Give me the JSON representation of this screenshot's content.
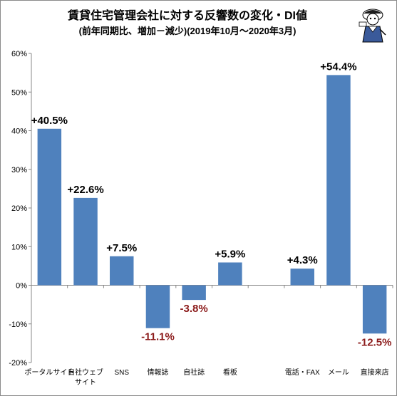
{
  "chart_data": {
    "type": "bar",
    "title": "賃貸住宅管理会社に対する反響数の変化・DI値",
    "subtitle": "(前年同期比、増加－減少)(2019年10月～2020年3月)",
    "xlabel": "",
    "ylabel": "",
    "ylim": [
      -20,
      60
    ],
    "yticks": [
      "-20%",
      "-10%",
      "0%",
      "10%",
      "20%",
      "30%",
      "40%",
      "50%",
      "60%"
    ],
    "grid": false,
    "categories": [
      [
        "ポータルサイト"
      ],
      [
        "自社ウェブ",
        "サイト"
      ],
      [
        "SNS"
      ],
      [
        "情報誌"
      ],
      [
        "自社誌"
      ],
      [
        "看板"
      ],
      [
        ""
      ],
      [
        "電話・FAX"
      ],
      [
        "メール"
      ],
      [
        "直接来店"
      ]
    ],
    "values": [
      40.5,
      22.6,
      7.5,
      -11.1,
      -3.8,
      5.9,
      null,
      4.3,
      54.4,
      -12.5
    ],
    "labels": [
      "+40.5%",
      "+22.6%",
      "+7.5%",
      "-11.1%",
      "-3.8%",
      "+5.9%",
      "",
      "+4.3%",
      "+54.4%",
      "-12.5%"
    ],
    "colors": {
      "bar": "#4f81bd",
      "positive_label": "#000000",
      "negative_label": "#8b1a1a",
      "axis": "#888888"
    }
  },
  "mascot": {
    "icon": "mascot-illustration-icon"
  }
}
